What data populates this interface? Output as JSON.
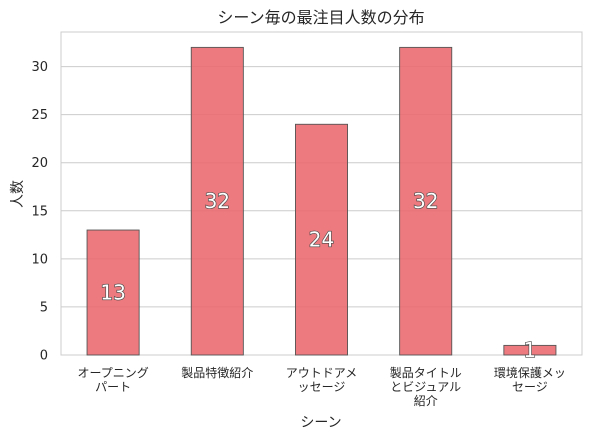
{
  "chart_data": {
    "type": "bar",
    "title": "シーン毎の最注目人数の分布",
    "xlabel": "シーン",
    "ylabel": "人数",
    "categories": [
      [
        "オープニング",
        "パート"
      ],
      [
        "製品特徴紹介"
      ],
      [
        "アウトドアメ",
        "ッセージ"
      ],
      [
        "製品タイトル",
        "とビジュアル",
        "紹介"
      ],
      [
        "環境保護メッ",
        "セージ"
      ]
    ],
    "values": [
      13,
      32,
      24,
      32,
      1
    ],
    "value_labels": [
      "13",
      "32",
      "24",
      "32",
      "1"
    ],
    "ylim": [
      0,
      33.6
    ],
    "yticks": [
      0,
      5,
      10,
      15,
      20,
      25,
      30
    ],
    "grid": "horizontal",
    "bar_color": "#e9686c",
    "bar_edge_color": "#555555",
    "grid_color": "#cccccc"
  }
}
